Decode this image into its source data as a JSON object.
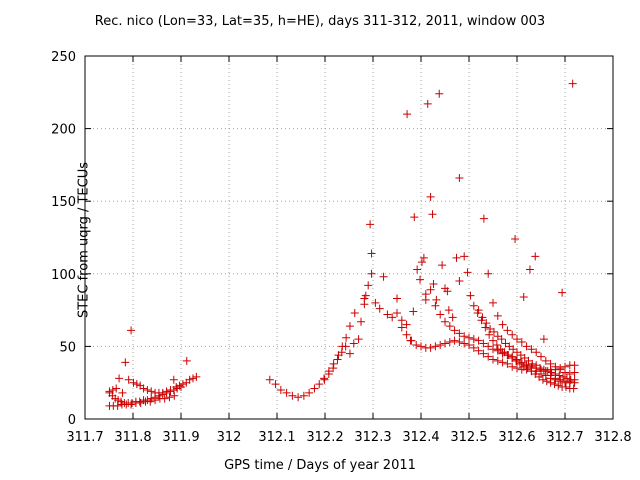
{
  "chart_data": {
    "type": "scatter",
    "title": "Rec. nico (Lon=33, Lat=35, h=HE), days 311-312, 2011, window 003",
    "xlabel": "GPS time / Days of year 2011",
    "ylabel": "STEC from uqrg / TECUs",
    "xlim": [
      311.7,
      312.8
    ],
    "ylim": [
      0,
      250
    ],
    "xticks": [
      "311.7",
      "311.8",
      "311.9",
      "312",
      "312.1",
      "312.2",
      "312.3",
      "312.4",
      "312.5",
      "312.6",
      "312.7",
      "312.8"
    ],
    "xtick_values": [
      311.7,
      311.8,
      311.9,
      312.0,
      312.1,
      312.2,
      312.3,
      312.4,
      312.5,
      312.6,
      312.7,
      312.8
    ],
    "yticks": [
      "0",
      "50",
      "100",
      "150",
      "200",
      "250"
    ],
    "ytick_values": [
      0,
      50,
      100,
      150,
      200,
      250
    ],
    "grid": true,
    "marker": "+",
    "color": "#cc0000",
    "series": [
      {
        "points": [
          [
            311.751,
            19
          ],
          [
            311.758,
            20
          ],
          [
            311.765,
            21
          ],
          [
            311.771,
            28
          ],
          [
            311.778,
            18
          ],
          [
            311.784,
            39
          ],
          [
            311.791,
            27
          ],
          [
            311.796,
            61
          ],
          [
            311.801,
            25
          ],
          [
            311.808,
            24
          ],
          [
            311.815,
            23
          ],
          [
            311.822,
            21
          ],
          [
            311.83,
            20
          ],
          [
            311.838,
            19
          ],
          [
            311.846,
            18
          ],
          [
            311.854,
            18
          ],
          [
            311.862,
            18
          ],
          [
            311.87,
            19
          ],
          [
            311.878,
            20
          ],
          [
            311.885,
            27
          ],
          [
            311.89,
            22
          ],
          [
            311.897,
            23
          ],
          [
            311.904,
            24
          ],
          [
            311.911,
            25
          ],
          [
            311.918,
            27
          ],
          [
            311.925,
            28
          ],
          [
            311.932,
            29
          ],
          [
            311.751,
            18
          ],
          [
            311.757,
            16
          ],
          [
            311.763,
            14
          ],
          [
            311.769,
            13
          ],
          [
            311.775,
            12
          ],
          [
            311.782,
            11
          ],
          [
            311.79,
            11
          ],
          [
            311.798,
            11
          ],
          [
            311.806,
            12
          ],
          [
            311.814,
            12
          ],
          [
            311.822,
            13
          ],
          [
            311.83,
            13
          ],
          [
            311.838,
            14
          ],
          [
            311.846,
            15
          ],
          [
            311.854,
            16
          ],
          [
            311.862,
            17
          ],
          [
            311.87,
            18
          ],
          [
            311.878,
            19
          ],
          [
            311.885,
            20
          ],
          [
            311.892,
            21
          ],
          [
            311.9,
            22
          ],
          [
            311.912,
            40
          ],
          [
            311.751,
            9
          ],
          [
            311.759,
            9
          ],
          [
            311.768,
            9
          ],
          [
            311.777,
            10
          ],
          [
            311.786,
            10
          ],
          [
            311.796,
            10
          ],
          [
            311.806,
            11
          ],
          [
            311.816,
            11
          ],
          [
            311.826,
            12
          ],
          [
            311.836,
            12
          ],
          [
            311.846,
            13
          ],
          [
            311.856,
            14
          ],
          [
            311.866,
            14
          ],
          [
            311.876,
            15
          ],
          [
            311.886,
            16
          ],
          [
            312.085,
            27
          ],
          [
            312.097,
            24
          ],
          [
            312.108,
            20
          ],
          [
            312.12,
            18
          ],
          [
            312.132,
            16
          ],
          [
            312.144,
            15
          ],
          [
            312.156,
            16
          ],
          [
            312.167,
            18
          ],
          [
            312.178,
            21
          ],
          [
            312.188,
            24
          ],
          [
            312.198,
            28
          ],
          [
            312.208,
            33
          ],
          [
            312.218,
            38
          ],
          [
            312.228,
            44
          ],
          [
            312.236,
            50
          ],
          [
            312.244,
            56
          ],
          [
            312.252,
            64
          ],
          [
            312.262,
            73
          ],
          [
            312.27,
            55
          ],
          [
            312.282,
            83
          ],
          [
            312.29,
            92
          ],
          [
            312.297,
            100
          ],
          [
            312.199,
            27
          ],
          [
            312.208,
            31
          ],
          [
            312.217,
            35
          ],
          [
            312.226,
            41
          ],
          [
            312.235,
            46
          ],
          [
            312.243,
            50
          ],
          [
            312.252,
            45
          ],
          [
            312.26,
            52
          ],
          [
            312.275,
            67
          ],
          [
            312.282,
            79
          ],
          [
            312.285,
            85
          ],
          [
            312.294,
            134
          ],
          [
            312.297,
            114
          ],
          [
            312.305,
            80
          ],
          [
            312.314,
            76
          ],
          [
            312.322,
            98
          ],
          [
            312.33,
            72
          ],
          [
            312.34,
            70
          ],
          [
            312.35,
            83
          ],
          [
            312.36,
            68
          ],
          [
            312.37,
            65
          ],
          [
            312.371,
            210
          ],
          [
            312.378,
            54
          ],
          [
            312.384,
            74
          ],
          [
            312.386,
            139
          ],
          [
            312.392,
            103
          ],
          [
            312.398,
            96
          ],
          [
            312.402,
            108
          ],
          [
            312.406,
            111
          ],
          [
            312.41,
            82
          ],
          [
            312.414,
            217
          ],
          [
            312.42,
            153
          ],
          [
            312.424,
            141
          ],
          [
            312.426,
            93
          ],
          [
            312.432,
            82
          ],
          [
            312.438,
            224
          ],
          [
            312.444,
            106
          ],
          [
            312.45,
            90
          ],
          [
            312.455,
            88
          ],
          [
            312.458,
            75
          ],
          [
            312.466,
            70
          ],
          [
            312.474,
            111
          ],
          [
            312.48,
            95
          ],
          [
            312.35,
            73
          ],
          [
            312.36,
            63
          ],
          [
            312.37,
            58
          ],
          [
            312.38,
            54
          ],
          [
            312.39,
            51
          ],
          [
            312.4,
            50
          ],
          [
            312.41,
            49
          ],
          [
            312.42,
            49
          ],
          [
            312.43,
            50
          ],
          [
            312.44,
            51
          ],
          [
            312.45,
            52
          ],
          [
            312.46,
            53
          ],
          [
            312.47,
            54
          ],
          [
            312.48,
            53
          ],
          [
            312.49,
            52
          ],
          [
            312.5,
            51
          ],
          [
            312.51,
            49
          ],
          [
            312.52,
            47
          ],
          [
            312.53,
            45
          ],
          [
            312.54,
            43
          ],
          [
            312.55,
            41
          ],
          [
            312.56,
            40
          ],
          [
            312.57,
            39
          ],
          [
            312.58,
            38
          ],
          [
            312.59,
            36
          ],
          [
            312.6,
            35
          ],
          [
            312.61,
            34
          ],
          [
            312.62,
            34
          ],
          [
            312.63,
            33
          ],
          [
            312.64,
            33
          ],
          [
            312.65,
            33
          ],
          [
            312.66,
            33
          ],
          [
            312.67,
            34
          ],
          [
            312.68,
            34
          ],
          [
            312.69,
            35
          ],
          [
            312.7,
            36
          ],
          [
            312.71,
            37
          ],
          [
            312.72,
            37
          ],
          [
            312.41,
            86
          ],
          [
            312.42,
            89
          ],
          [
            312.43,
            78
          ],
          [
            312.44,
            72
          ],
          [
            312.45,
            67
          ],
          [
            312.46,
            64
          ],
          [
            312.47,
            61
          ],
          [
            312.48,
            59
          ],
          [
            312.49,
            57
          ],
          [
            312.5,
            56
          ],
          [
            312.51,
            55
          ],
          [
            312.52,
            54
          ],
          [
            312.53,
            52
          ],
          [
            312.54,
            50
          ],
          [
            312.55,
            48
          ],
          [
            312.56,
            47
          ],
          [
            312.57,
            45
          ],
          [
            312.58,
            44
          ],
          [
            312.59,
            43
          ],
          [
            312.6,
            41
          ],
          [
            312.61,
            39
          ],
          [
            312.62,
            37
          ],
          [
            312.63,
            35
          ],
          [
            312.64,
            33
          ],
          [
            312.65,
            31
          ],
          [
            312.66,
            30
          ],
          [
            312.67,
            28
          ],
          [
            312.68,
            27
          ],
          [
            312.69,
            26
          ],
          [
            312.7,
            25
          ],
          [
            312.71,
            25
          ],
          [
            312.72,
            25
          ],
          [
            312.48,
            166
          ],
          [
            312.49,
            112
          ],
          [
            312.497,
            101
          ],
          [
            312.503,
            85
          ],
          [
            312.51,
            78
          ],
          [
            312.518,
            73
          ],
          [
            312.526,
            68
          ],
          [
            312.534,
            63
          ],
          [
            312.542,
            58
          ],
          [
            312.55,
            54
          ],
          [
            312.558,
            51
          ],
          [
            312.566,
            48
          ],
          [
            312.574,
            46
          ],
          [
            312.582,
            44
          ],
          [
            312.59,
            42
          ],
          [
            312.598,
            40
          ],
          [
            312.606,
            38
          ],
          [
            312.614,
            36
          ],
          [
            312.622,
            35
          ],
          [
            312.63,
            33
          ],
          [
            312.638,
            31
          ],
          [
            312.646,
            29
          ],
          [
            312.654,
            27
          ],
          [
            312.662,
            26
          ],
          [
            312.67,
            25
          ],
          [
            312.678,
            24
          ],
          [
            312.686,
            23
          ],
          [
            312.694,
            22
          ],
          [
            312.702,
            22
          ],
          [
            312.71,
            21
          ],
          [
            312.718,
            21
          ],
          [
            312.531,
            138
          ],
          [
            312.54,
            100
          ],
          [
            312.55,
            80
          ],
          [
            312.56,
            71
          ],
          [
            312.57,
            65
          ],
          [
            312.58,
            61
          ],
          [
            312.59,
            58
          ],
          [
            312.596,
            124
          ],
          [
            312.6,
            55
          ],
          [
            312.61,
            53
          ],
          [
            312.614,
            84
          ],
          [
            312.62,
            50
          ],
          [
            312.627,
            103
          ],
          [
            312.63,
            48
          ],
          [
            312.638,
            112
          ],
          [
            312.64,
            46
          ],
          [
            312.65,
            43
          ],
          [
            312.656,
            55
          ],
          [
            312.66,
            40
          ],
          [
            312.67,
            38
          ],
          [
            312.68,
            36
          ],
          [
            312.69,
            34
          ],
          [
            312.694,
            87
          ],
          [
            312.7,
            32
          ],
          [
            312.71,
            31
          ],
          [
            312.716,
            231
          ],
          [
            312.52,
            75
          ],
          [
            312.528,
            70
          ],
          [
            312.536,
            66
          ],
          [
            312.544,
            62
          ],
          [
            312.552,
            60
          ],
          [
            312.56,
            57
          ],
          [
            312.568,
            55
          ],
          [
            312.576,
            52
          ],
          [
            312.584,
            50
          ],
          [
            312.592,
            48
          ],
          [
            312.6,
            46
          ],
          [
            312.608,
            44
          ],
          [
            312.616,
            42
          ],
          [
            312.624,
            40
          ],
          [
            312.632,
            38
          ],
          [
            312.64,
            37
          ],
          [
            312.648,
            35
          ],
          [
            312.656,
            34
          ],
          [
            312.664,
            33
          ],
          [
            312.672,
            32
          ],
          [
            312.68,
            31
          ],
          [
            312.688,
            30
          ],
          [
            312.696,
            29
          ],
          [
            312.704,
            28
          ],
          [
            312.712,
            27
          ],
          [
            312.72,
            27
          ],
          [
            312.56,
            48
          ],
          [
            312.57,
            46
          ],
          [
            312.58,
            44
          ],
          [
            312.59,
            42
          ],
          [
            312.6,
            40
          ],
          [
            312.61,
            38
          ],
          [
            312.62,
            37
          ],
          [
            312.63,
            36
          ],
          [
            312.64,
            35
          ],
          [
            312.65,
            34
          ],
          [
            312.66,
            33
          ],
          [
            312.67,
            30
          ],
          [
            312.68,
            28
          ],
          [
            312.69,
            27
          ],
          [
            312.7,
            26
          ],
          [
            312.71,
            26
          ],
          [
            312.72,
            32
          ]
        ]
      }
    ]
  }
}
